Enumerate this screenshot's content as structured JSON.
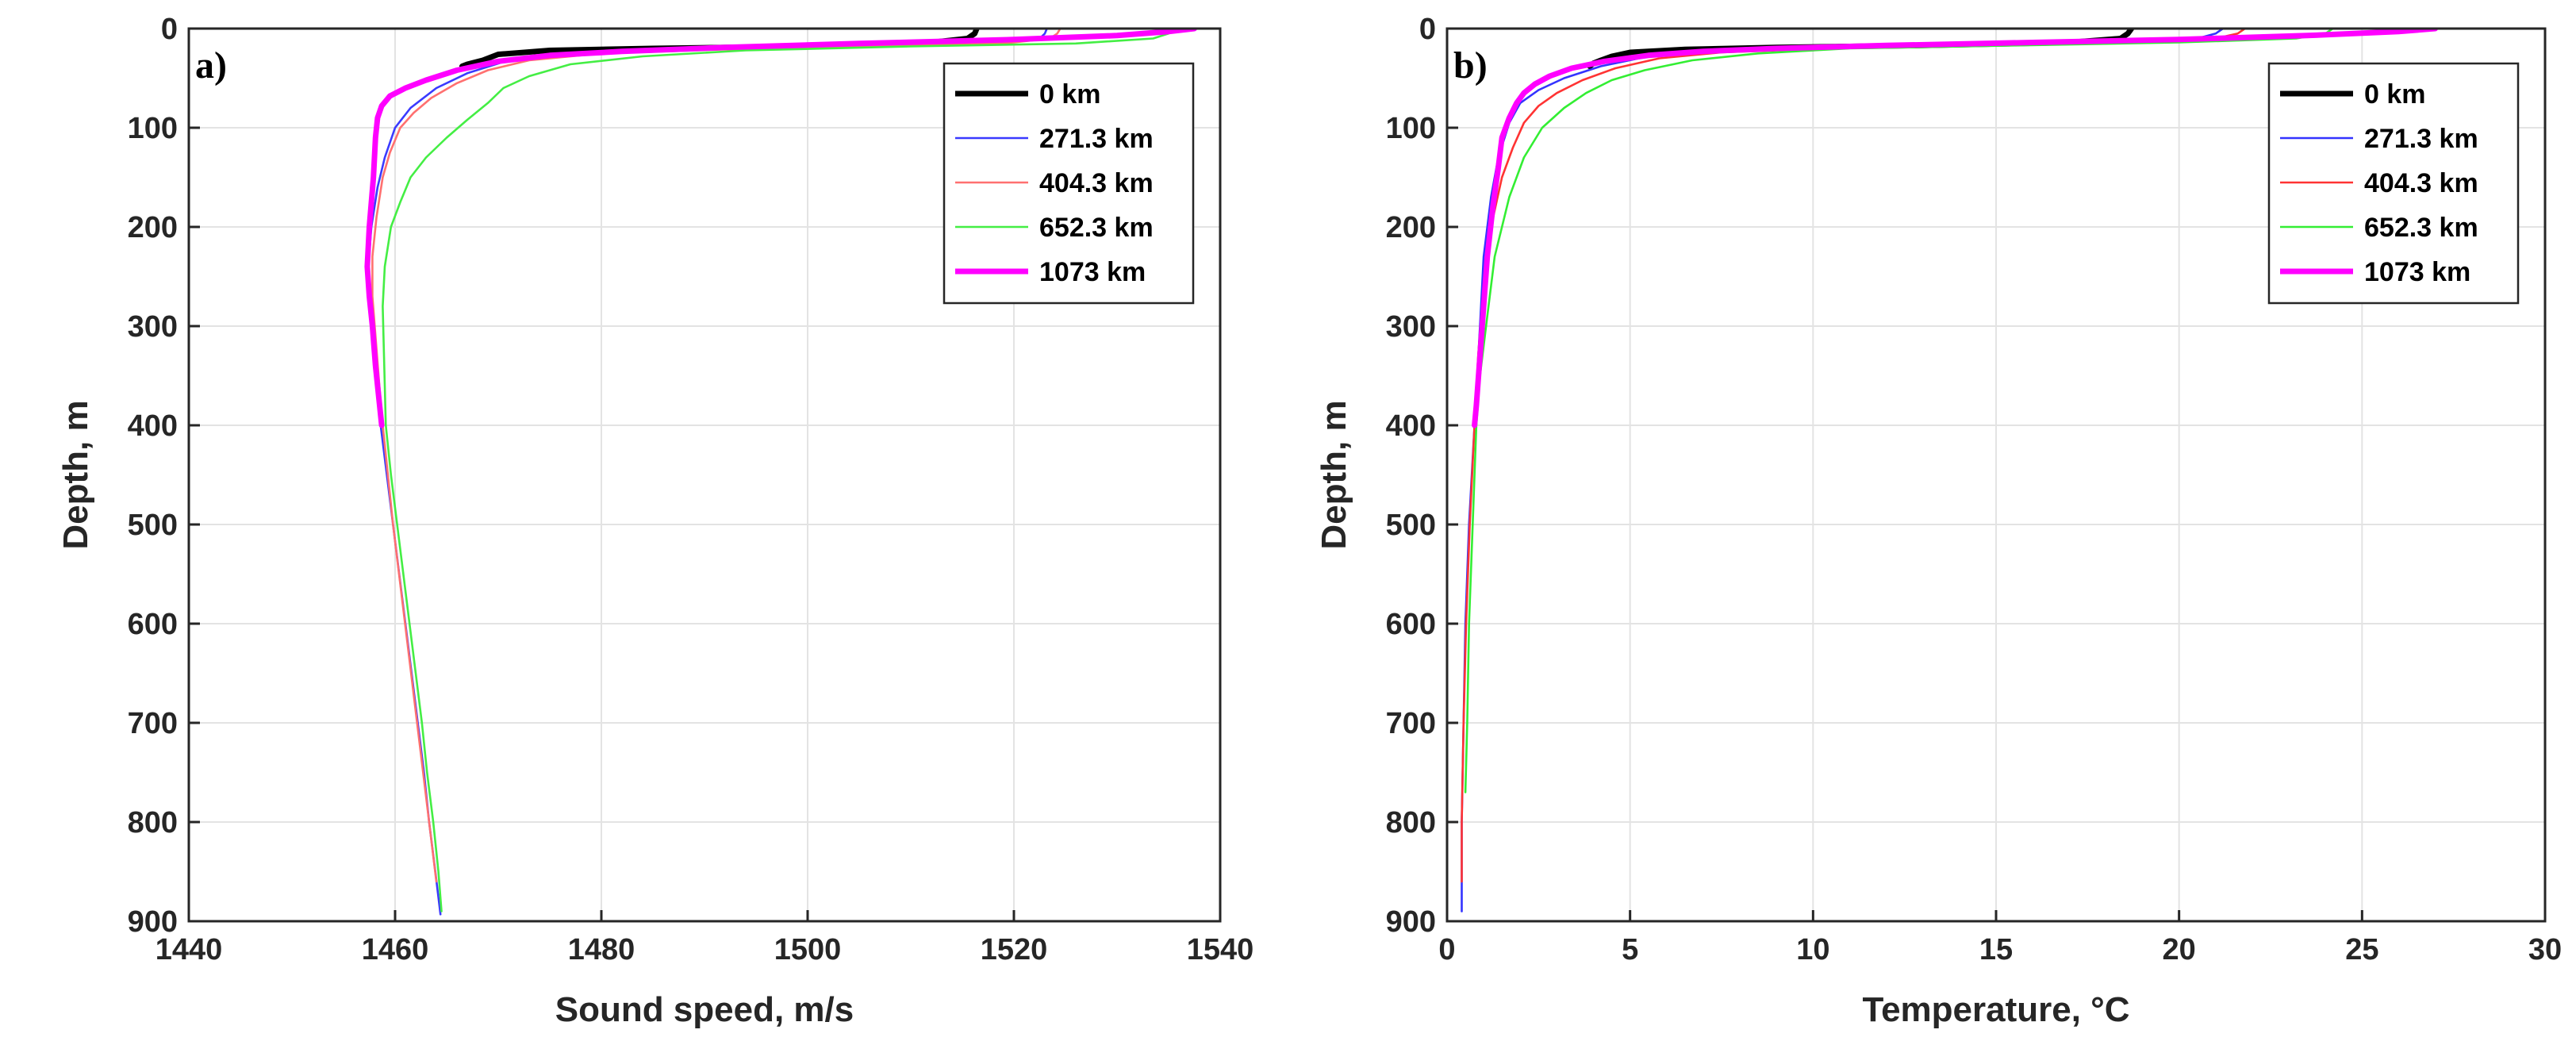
{
  "chart_data": [
    {
      "type": "line",
      "panel_label": "a)",
      "title": "",
      "xlabel": "Sound speed, m/s",
      "ylabel": "Depth, m",
      "xlim": [
        1440,
        1540
      ],
      "ylim": [
        900,
        0
      ],
      "y_reversed": true,
      "xticks": [
        1440,
        1460,
        1480,
        1500,
        1520,
        1540
      ],
      "yticks": [
        0,
        100,
        200,
        300,
        400,
        500,
        600,
        700,
        800,
        900
      ],
      "grid": true,
      "legend_location": "top-right",
      "series": [
        {
          "name": "0 km",
          "color": "#000000",
          "width": "thick",
          "points": [
            [
              1516.4,
              0
            ],
            [
              1516.2,
              5
            ],
            [
              1515.5,
              10
            ],
            [
              1512,
              14
            ],
            [
              1500,
              18
            ],
            [
              1485,
              20
            ],
            [
              1475,
              22
            ],
            [
              1470,
              26
            ],
            [
              1468.5,
              32
            ],
            [
              1467,
              36
            ],
            [
              1466.5,
              38
            ]
          ]
        },
        {
          "name": "271.3 km",
          "color": "#3a3aff",
          "width": "thin",
          "points": [
            [
              1523.2,
              0
            ],
            [
              1523,
              5
            ],
            [
              1522.5,
              10
            ],
            [
              1518,
              15
            ],
            [
              1505,
              18
            ],
            [
              1490,
              21
            ],
            [
              1478,
              25
            ],
            [
              1471,
              32
            ],
            [
              1467,
              45
            ],
            [
              1464,
              60
            ],
            [
              1461.5,
              80
            ],
            [
              1460,
              100
            ],
            [
              1459,
              130
            ],
            [
              1458.3,
              160
            ],
            [
              1457.7,
              200
            ],
            [
              1457.4,
              240
            ],
            [
              1457.5,
              280
            ],
            [
              1457.9,
              320
            ],
            [
              1458.3,
              360
            ],
            [
              1458.6,
              400
            ],
            [
              1459.2,
              450
            ],
            [
              1459.8,
              500
            ],
            [
              1460.4,
              550
            ],
            [
              1461,
              600
            ],
            [
              1461.6,
              650
            ],
            [
              1462.2,
              700
            ],
            [
              1462.8,
              750
            ],
            [
              1463.3,
              800
            ],
            [
              1463.9,
              850
            ],
            [
              1464.4,
              893
            ]
          ]
        },
        {
          "name": "404.3 km",
          "color": "#ff7070",
          "width": "thin",
          "points": [
            [
              1524.5,
              0
            ],
            [
              1524.2,
              5
            ],
            [
              1523.5,
              10
            ],
            [
              1519,
              15
            ],
            [
              1506,
              18
            ],
            [
              1492,
              21
            ],
            [
              1480,
              25
            ],
            [
              1473,
              32
            ],
            [
              1469,
              42
            ],
            [
              1466,
              55
            ],
            [
              1463.5,
              70
            ],
            [
              1461.8,
              85
            ],
            [
              1460.5,
              100
            ],
            [
              1459.5,
              125
            ],
            [
              1458.8,
              150
            ],
            [
              1458.2,
              190
            ],
            [
              1457.8,
              230
            ],
            [
              1457.8,
              270
            ],
            [
              1458.1,
              310
            ],
            [
              1458.4,
              350
            ],
            [
              1458.7,
              390
            ],
            [
              1459.2,
              440
            ],
            [
              1459.8,
              500
            ],
            [
              1460.5,
              560
            ],
            [
              1461.2,
              620
            ],
            [
              1461.9,
              680
            ],
            [
              1462.6,
              740
            ],
            [
              1463.3,
              800
            ],
            [
              1464,
              860
            ]
          ]
        },
        {
          "name": "652.3 km",
          "color": "#44ee44",
          "width": "thin",
          "points": [
            [
              1535.5,
              0
            ],
            [
              1535,
              5
            ],
            [
              1533.5,
              10
            ],
            [
              1526,
              15
            ],
            [
              1510,
              18
            ],
            [
              1494,
              22
            ],
            [
              1484,
              28
            ],
            [
              1477,
              36
            ],
            [
              1473,
              48
            ],
            [
              1470.5,
              60
            ],
            [
              1469,
              75
            ],
            [
              1467,
              92
            ],
            [
              1465,
              110
            ],
            [
              1463,
              130
            ],
            [
              1461.5,
              150
            ],
            [
              1460.5,
              175
            ],
            [
              1459.6,
              200
            ],
            [
              1459,
              240
            ],
            [
              1458.8,
              280
            ],
            [
              1458.9,
              320
            ],
            [
              1459,
              360
            ],
            [
              1459.1,
              400
            ],
            [
              1459.6,
              450
            ],
            [
              1460.2,
              500
            ],
            [
              1460.8,
              550
            ],
            [
              1461.4,
              600
            ],
            [
              1462,
              650
            ],
            [
              1462.6,
              700
            ],
            [
              1463.1,
              750
            ],
            [
              1463.7,
              800
            ],
            [
              1464.2,
              850
            ],
            [
              1464.5,
              890
            ]
          ]
        },
        {
          "name": "1073 km",
          "color": "#ff00ff",
          "width": "thick",
          "points": [
            [
              1537.5,
              0
            ],
            [
              1535,
              3
            ],
            [
              1530,
              7
            ],
            [
              1520,
              11
            ],
            [
              1505,
              15
            ],
            [
              1492,
              19
            ],
            [
              1482,
              23
            ],
            [
              1475,
              27
            ],
            [
              1470,
              33
            ],
            [
              1466,
              42
            ],
            [
              1463,
              52
            ],
            [
              1461,
              60
            ],
            [
              1459.5,
              68
            ],
            [
              1458.7,
              78
            ],
            [
              1458.3,
              90
            ],
            [
              1458.1,
              110
            ],
            [
              1457.9,
              150
            ],
            [
              1457.5,
              200
            ],
            [
              1457.3,
              240
            ],
            [
              1457.5,
              270
            ],
            [
              1457.8,
              300
            ],
            [
              1458.1,
              340
            ],
            [
              1458.4,
              370
            ],
            [
              1458.7,
              400
            ]
          ]
        }
      ]
    },
    {
      "type": "line",
      "panel_label": "b)",
      "title": "",
      "xlabel": "Temperature, °C",
      "ylabel": "Depth, m",
      "xlim": [
        0,
        30
      ],
      "ylim": [
        900,
        0
      ],
      "y_reversed": true,
      "xticks": [
        0,
        5,
        10,
        15,
        20,
        25,
        30
      ],
      "yticks": [
        0,
        100,
        200,
        300,
        400,
        500,
        600,
        700,
        800,
        900
      ],
      "grid": true,
      "legend_location": "top-right",
      "series": [
        {
          "name": "0 km",
          "color": "#000000",
          "width": "thick",
          "points": [
            [
              18.7,
              0
            ],
            [
              18.6,
              5
            ],
            [
              18.4,
              10
            ],
            [
              17,
              14
            ],
            [
              13,
              17
            ],
            [
              9,
              19
            ],
            [
              6.5,
              21
            ],
            [
              5,
              24
            ],
            [
              4.5,
              28
            ],
            [
              4.2,
              32
            ],
            [
              4,
              35
            ],
            [
              3.9,
              38
            ]
          ]
        },
        {
          "name": "271.3 km",
          "color": "#3333ff",
          "width": "thin",
          "points": [
            [
              21.2,
              0
            ],
            [
              21,
              5
            ],
            [
              20.5,
              10
            ],
            [
              18,
              14
            ],
            [
              14,
              17
            ],
            [
              10,
              19
            ],
            [
              7,
              22
            ],
            [
              5.5,
              28
            ],
            [
              4.2,
              38
            ],
            [
              3.2,
              50
            ],
            [
              2.5,
              62
            ],
            [
              2,
              75
            ],
            [
              1.7,
              95
            ],
            [
              1.4,
              130
            ],
            [
              1.2,
              170
            ],
            [
              1,
              230
            ],
            [
              0.9,
              300
            ],
            [
              0.75,
              400
            ],
            [
              0.6,
              500
            ],
            [
              0.5,
              600
            ],
            [
              0.45,
              700
            ],
            [
              0.4,
              800
            ],
            [
              0.4,
              890
            ]
          ]
        },
        {
          "name": "404.3 km",
          "color": "#ff3333",
          "width": "thin",
          "points": [
            [
              21.8,
              0
            ],
            [
              21.6,
              5
            ],
            [
              21,
              10
            ],
            [
              18.5,
              14
            ],
            [
              14.5,
              17
            ],
            [
              10.5,
              20
            ],
            [
              7.5,
              24
            ],
            [
              5.8,
              30
            ],
            [
              4.6,
              40
            ],
            [
              3.7,
              52
            ],
            [
              3,
              65
            ],
            [
              2.5,
              78
            ],
            [
              2.1,
              95
            ],
            [
              1.8,
              120
            ],
            [
              1.5,
              150
            ],
            [
              1.2,
              200
            ],
            [
              1,
              260
            ],
            [
              0.85,
              330
            ],
            [
              0.75,
              400
            ],
            [
              0.62,
              500
            ],
            [
              0.52,
              600
            ],
            [
              0.45,
              700
            ],
            [
              0.4,
              800
            ],
            [
              0.4,
              860
            ]
          ]
        },
        {
          "name": "652.3 km",
          "color": "#33ee33",
          "width": "thin",
          "points": [
            [
              24.2,
              0
            ],
            [
              24,
              5
            ],
            [
              23.2,
              10
            ],
            [
              20,
              14
            ],
            [
              15.5,
              17
            ],
            [
              11,
              20
            ],
            [
              8.5,
              25
            ],
            [
              6.7,
              32
            ],
            [
              5.4,
              42
            ],
            [
              4.5,
              52
            ],
            [
              3.8,
              65
            ],
            [
              3.2,
              80
            ],
            [
              2.6,
              100
            ],
            [
              2.1,
              130
            ],
            [
              1.7,
              170
            ],
            [
              1.3,
              230
            ],
            [
              1.1,
              290
            ],
            [
              0.9,
              350
            ],
            [
              0.8,
              400
            ],
            [
              0.7,
              500
            ],
            [
              0.6,
              600
            ],
            [
              0.55,
              700
            ],
            [
              0.5,
              770
            ]
          ]
        },
        {
          "name": "1073 km",
          "color": "#ff00ff",
          "width": "thick",
          "points": [
            [
              27,
              0
            ],
            [
              26,
              3
            ],
            [
              23.5,
              7
            ],
            [
              20,
              11
            ],
            [
              16,
              14
            ],
            [
              12,
              17
            ],
            [
              9,
              20
            ],
            [
              7,
              23
            ],
            [
              5.5,
              27
            ],
            [
              4.3,
              33
            ],
            [
              3.4,
              40
            ],
            [
              2.8,
              48
            ],
            [
              2.4,
              56
            ],
            [
              2.1,
              65
            ],
            [
              1.9,
              75
            ],
            [
              1.7,
              90
            ],
            [
              1.5,
              110
            ],
            [
              1.4,
              140
            ],
            [
              1.25,
              180
            ],
            [
              1.1,
              230
            ],
            [
              1,
              280
            ],
            [
              0.9,
              330
            ],
            [
              0.8,
              380
            ],
            [
              0.75,
              400
            ]
          ]
        }
      ]
    }
  ]
}
